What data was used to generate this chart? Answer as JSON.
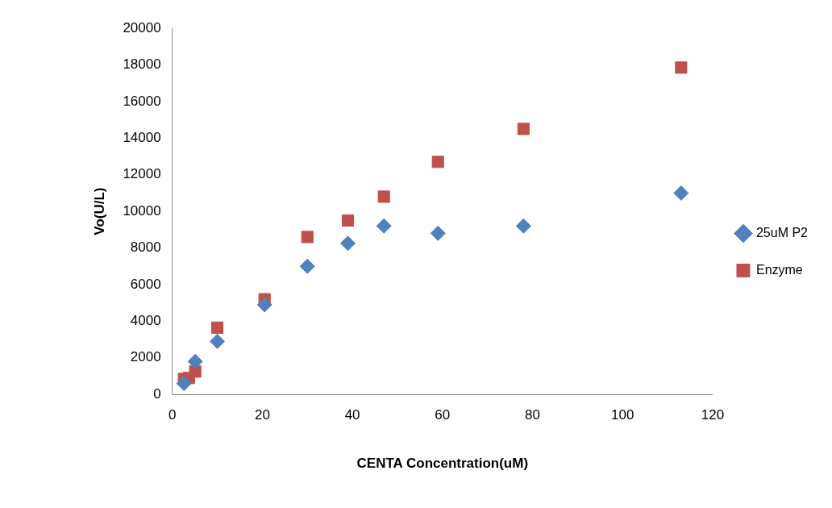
{
  "chart_data": {
    "type": "scatter",
    "xlabel": "CENTA Concentration(uM)",
    "ylabel": "Vo(U/L)",
    "xlim": [
      0,
      120
    ],
    "xticks": [
      0,
      20,
      40,
      60,
      80,
      100,
      120
    ],
    "ylim": [
      0,
      20000
    ],
    "yticks": [
      0,
      2000,
      4000,
      6000,
      8000,
      10000,
      12000,
      14000,
      16000,
      18000,
      20000
    ],
    "grid": false,
    "legend": "right",
    "series": [
      {
        "name": "25uM P2",
        "color": "#4f81bd",
        "marker": "diamond",
        "x": [
          2.6,
          5.1,
          10,
          20.5,
          30,
          39,
          47,
          59,
          78,
          113
        ],
        "values": [
          600,
          1800,
          2900,
          4900,
          7000,
          8250,
          9200,
          8800,
          9200,
          11000
        ]
      },
      {
        "name": "Enzyme",
        "color": "#c0504d",
        "marker": "square",
        "x": [
          2.6,
          3.7,
          5.1,
          10,
          20.5,
          30,
          39,
          47,
          59,
          78,
          113
        ],
        "values": [
          850,
          900,
          1250,
          3650,
          5200,
          8600,
          9500,
          10800,
          12700,
          14500,
          17850
        ]
      }
    ]
  }
}
